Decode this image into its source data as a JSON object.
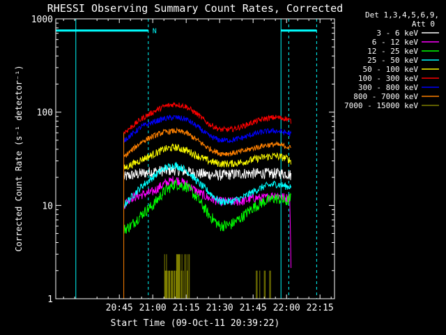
{
  "chart_data": {
    "type": "line",
    "title": "RHESSI Observing Summary Count Rates, Corrected",
    "xlabel": "Start Time (09-Oct-11 20:39:22)",
    "ylabel": "Corrected Count Rate (s⁻¹ detector⁻¹)",
    "x_range_minutes": [
      -43.5,
      81.5
    ],
    "x_ticks": [
      {
        "m": -15,
        "label": "20:45"
      },
      {
        "m": 0,
        "label": "21:00"
      },
      {
        "m": 15,
        "label": "21:15"
      },
      {
        "m": 30,
        "label": "21:30"
      },
      {
        "m": 45,
        "label": "21:45"
      },
      {
        "m": 60,
        "label": "22:00"
      },
      {
        "m": 75,
        "label": "22:15"
      }
    ],
    "y_scale": "log",
    "ylim": [
      1,
      1000
    ],
    "y_ticks": [
      {
        "v": 1,
        "label": "1"
      },
      {
        "v": 10,
        "label": "10"
      },
      {
        "v": 100,
        "label": "100"
      },
      {
        "v": 1000,
        "label": "1000"
      }
    ],
    "legend_header": [
      "Det 1,3,4,5,6,9,",
      "Att 0"
    ],
    "legend_position": "right",
    "data_window_minutes": [
      -13,
      62
    ],
    "night_marker": {
      "label": "N",
      "start_minutes": -34.5,
      "end_minutes": -2.0,
      "dashed_lines_minutes": [
        -2.0,
        61.0
      ],
      "solid_lines_minutes": [
        -34.5,
        57.5
      ],
      "level": 750,
      "second_bar_minutes": [
        57.5,
        73.5
      ],
      "end_dash_minutes": 73.5
    },
    "series": [
      {
        "name": "3 - 6 keV",
        "color": "#ffffff",
        "jitter": 0.06,
        "points": [
          [
            -13,
            20
          ],
          [
            -10,
            21
          ],
          [
            0,
            23
          ],
          [
            10,
            24
          ],
          [
            20,
            22
          ],
          [
            30,
            21
          ],
          [
            40,
            22
          ],
          [
            50,
            22
          ],
          [
            60,
            22
          ],
          [
            62,
            21
          ]
        ]
      },
      {
        "name": "6 - 12 keV",
        "color": "#ff00ff",
        "jitter": 0.05,
        "points": [
          [
            -13,
            10
          ],
          [
            -10,
            12
          ],
          [
            -5,
            13
          ],
          [
            0,
            14
          ],
          [
            5,
            17
          ],
          [
            10,
            19
          ],
          [
            15,
            17
          ],
          [
            20,
            14
          ],
          [
            25,
            12
          ],
          [
            30,
            11
          ],
          [
            35,
            11
          ],
          [
            40,
            11
          ],
          [
            45,
            12
          ],
          [
            50,
            12
          ],
          [
            55,
            13
          ],
          [
            60,
            12
          ],
          [
            61.5,
            12
          ],
          [
            62,
            2
          ]
        ]
      },
      {
        "name": "12 - 25 keV",
        "color": "#00ff00",
        "jitter": 0.06,
        "points": [
          [
            -13,
            5.5
          ],
          [
            -10,
            6
          ],
          [
            -5,
            8
          ],
          [
            0,
            10
          ],
          [
            5,
            14
          ],
          [
            10,
            17
          ],
          [
            15,
            16
          ],
          [
            20,
            12
          ],
          [
            25,
            8
          ],
          [
            30,
            6
          ],
          [
            35,
            6.2
          ],
          [
            40,
            7.5
          ],
          [
            45,
            9.5
          ],
          [
            50,
            11
          ],
          [
            55,
            12
          ],
          [
            60,
            11
          ],
          [
            62,
            12
          ]
        ]
      },
      {
        "name": "25 - 50 keV",
        "color": "#00ffff",
        "jitter": 0.04,
        "points": [
          [
            -13,
            10
          ],
          [
            -10,
            12
          ],
          [
            -5,
            16
          ],
          [
            0,
            20
          ],
          [
            5,
            25
          ],
          [
            10,
            27
          ],
          [
            15,
            24
          ],
          [
            20,
            18
          ],
          [
            25,
            14
          ],
          [
            30,
            11
          ],
          [
            35,
            11
          ],
          [
            40,
            12
          ],
          [
            45,
            14
          ],
          [
            50,
            16
          ],
          [
            55,
            17
          ],
          [
            60,
            16
          ],
          [
            62,
            16
          ]
        ]
      },
      {
        "name": "50 - 100 keV",
        "color": "#ffff00",
        "jitter": 0.04,
        "points": [
          [
            -13,
            25
          ],
          [
            -10,
            27
          ],
          [
            -5,
            31
          ],
          [
            0,
            35
          ],
          [
            5,
            40
          ],
          [
            10,
            42
          ],
          [
            15,
            39
          ],
          [
            20,
            34
          ],
          [
            25,
            30
          ],
          [
            30,
            28
          ],
          [
            35,
            28
          ],
          [
            40,
            29
          ],
          [
            45,
            31
          ],
          [
            50,
            33
          ],
          [
            55,
            34
          ],
          [
            60,
            32
          ],
          [
            62,
            30
          ]
        ]
      },
      {
        "name": "100 - 300 keV",
        "color": "#ff0000",
        "jitter": 0.03,
        "points": [
          [
            -13,
            60
          ],
          [
            -10,
            68
          ],
          [
            -5,
            85
          ],
          [
            0,
            100
          ],
          [
            5,
            115
          ],
          [
            10,
            122
          ],
          [
            15,
            115
          ],
          [
            20,
            95
          ],
          [
            25,
            75
          ],
          [
            30,
            65
          ],
          [
            35,
            65
          ],
          [
            40,
            70
          ],
          [
            45,
            78
          ],
          [
            50,
            85
          ],
          [
            55,
            88
          ],
          [
            60,
            85
          ],
          [
            62,
            80
          ]
        ]
      },
      {
        "name": "300 - 800 keV",
        "color": "#0000ff",
        "jitter": 0.03,
        "points": [
          [
            -13,
            50
          ],
          [
            -10,
            56
          ],
          [
            -5,
            70
          ],
          [
            0,
            78
          ],
          [
            5,
            85
          ],
          [
            10,
            88
          ],
          [
            15,
            84
          ],
          [
            20,
            70
          ],
          [
            25,
            56
          ],
          [
            30,
            50
          ],
          [
            35,
            50
          ],
          [
            40,
            53
          ],
          [
            45,
            58
          ],
          [
            50,
            62
          ],
          [
            55,
            63
          ],
          [
            60,
            60
          ],
          [
            62,
            58
          ]
        ]
      },
      {
        "name": "800 - 7000 keV",
        "color": "#ff8000",
        "jitter": 0.03,
        "points": [
          [
            -13,
            33
          ],
          [
            -10,
            38
          ],
          [
            -5,
            48
          ],
          [
            0,
            55
          ],
          [
            5,
            61
          ],
          [
            10,
            63
          ],
          [
            15,
            60
          ],
          [
            20,
            50
          ],
          [
            25,
            41
          ],
          [
            30,
            36
          ],
          [
            35,
            36
          ],
          [
            40,
            38
          ],
          [
            45,
            41
          ],
          [
            50,
            44
          ],
          [
            55,
            45
          ],
          [
            60,
            43
          ],
          [
            62,
            41
          ]
        ]
      },
      {
        "name": "7000 - 15000 keV",
        "color": "#808000",
        "jitter": 0.0,
        "points": [
          [
            -13,
            1
          ],
          [
            62,
            1
          ]
        ]
      }
    ]
  }
}
